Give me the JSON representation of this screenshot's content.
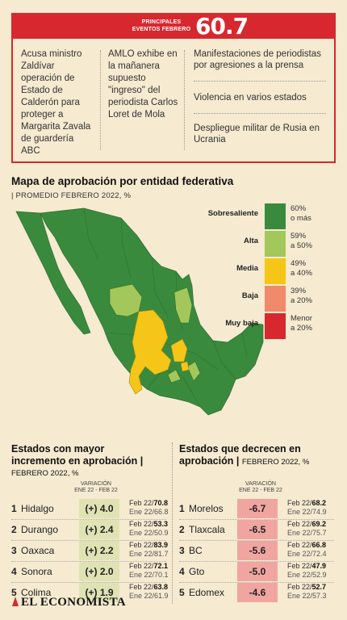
{
  "header": {
    "label_line1": "PRINCIPALES",
    "label_line2": "EVENTOS FEBRERO",
    "value": "60.7"
  },
  "events": {
    "col1": "Acusa ministro Zaldívar operación de Estado de Calderón para proteger a Margarita Zavala de guardería ABC",
    "col2": "AMLO exhibe en la mañanera supuesto \"ingreso\" del periodista Carlos Loret de Mola",
    "right": [
      "Manifestaciones de periodistas por agresiones a la prensa",
      "Violencia en varios estados",
      "Despliegue militar de Rusia en Ucrania"
    ]
  },
  "map_section": {
    "title": "Mapa de aprobación por entidad federativa",
    "subtitle": "| PROMEDIO FEBRERO 2022, %",
    "legend": [
      {
        "name": "Sobresaliente",
        "range1": "60%",
        "range2": "o más",
        "color": "#3a8a3d"
      },
      {
        "name": "Alta",
        "range1": "59%",
        "range2": "a 50%",
        "color": "#a3c75a"
      },
      {
        "name": "Media",
        "range1": "49%",
        "range2": "a 40%",
        "color": "#f5c518"
      },
      {
        "name": "Baja",
        "range1": "39%",
        "range2": "a 20%",
        "color": "#f08a6a"
      },
      {
        "name": "Muy baja",
        "range1": "Menor",
        "range2": "a 20%",
        "color": "#d7282f"
      }
    ]
  },
  "increase": {
    "title_line1": "Estados con mayor",
    "title_line2": "incremento en aprobación",
    "title_sep": "|",
    "subtitle": "FEBRERO 2022, %",
    "var_header1": "VARIACIÓN",
    "var_header2": "ENE 22 - FEB 22",
    "color": "#dfe3b4",
    "rows": [
      {
        "rank": "1",
        "state": "Hidalgo",
        "var": "(+) 4.0",
        "feb_label": "Feb 22/",
        "feb": "70.8",
        "ene": "Ene 22/66.8"
      },
      {
        "rank": "2",
        "state": "Durango",
        "var": "(+) 2.4",
        "feb_label": "Feb 22/",
        "feb": "53.3",
        "ene": "Ene 22/50.9"
      },
      {
        "rank": "3",
        "state": "Oaxaca",
        "var": "(+) 2.2",
        "feb_label": "Feb 22/",
        "feb": "83.9",
        "ene": "Ene 22/81.7"
      },
      {
        "rank": "4",
        "state": "Sonora",
        "var": "(+) 2.0",
        "feb_label": "Feb 22/",
        "feb": "72.1",
        "ene": "Ene 22/70.1"
      },
      {
        "rank": "5",
        "state": "Colima",
        "var": "(+) 1.9",
        "feb_label": "Feb 22/",
        "feb": "63.8",
        "ene": "Ene 22/61.9"
      }
    ]
  },
  "decrease": {
    "title_line1": "Estados que decrecen en",
    "title_line2": "aprobación",
    "title_sep": "|",
    "subtitle": "FEBRERO 2022, %",
    "var_header1": "VARIACIÓN",
    "var_header2": "ENE 22 - FEB 22",
    "color": "#f0a5a0",
    "rows": [
      {
        "rank": "1",
        "state": "Morelos",
        "var": "-6.7",
        "feb_label": "Feb 22/",
        "feb": "68.2",
        "ene": "Ene 22/74.9"
      },
      {
        "rank": "2",
        "state": "Tlaxcala",
        "var": "-6.5",
        "feb_label": "Feb 22/",
        "feb": "69.2",
        "ene": "Ene 22/75.7"
      },
      {
        "rank": "3",
        "state": "BC",
        "var": "-5.6",
        "feb_label": "Feb 22/",
        "feb": "66.8",
        "ene": "Ene 22/72.4"
      },
      {
        "rank": "4",
        "state": "Gto",
        "var": "-5.0",
        "feb_label": "Feb 22/",
        "feb": "47.9",
        "ene": "Ene 22/52.9"
      },
      {
        "rank": "5",
        "state": "Edomex",
        "var": "-4.6",
        "feb_label": "Feb 22/",
        "feb": "52.7",
        "ene": "Ene 22/57.3"
      }
    ]
  },
  "footer": {
    "logo": "EL ECONOMISTA"
  }
}
